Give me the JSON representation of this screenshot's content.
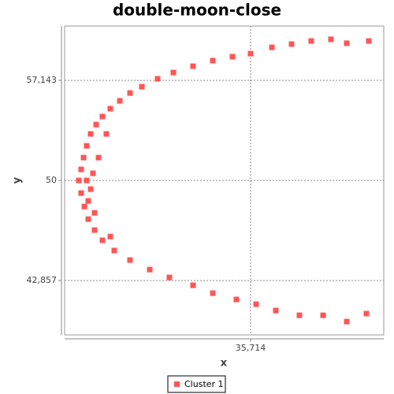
{
  "chart_data": {
    "type": "scatter",
    "title": "double-moon-close",
    "x_label": "x",
    "y_label": "y",
    "xlim": [
      10,
      54.13
    ],
    "ylim": [
      38.98,
      61.02
    ],
    "xticks": [
      {
        "value": 35.714,
        "label": "35,714"
      }
    ],
    "yticks": [
      {
        "value": 42.857,
        "label": "42,857"
      },
      50,
      {
        "value": 57.143,
        "label": "57,143"
      }
    ],
    "grid": true,
    "legend": "bottom",
    "series": [
      {
        "name": "Cluster 1",
        "color": "#ff5555",
        "x": [
          11.96,
          12.29,
          12.62,
          13.05,
          13.6,
          14.36,
          15.23,
          16.32,
          17.63,
          19.04,
          20.68,
          22.86,
          25.04,
          27.76,
          30.49,
          33.21,
          35.71,
          38.66,
          41.38,
          44.1,
          46.83,
          49.01,
          52.06,
          12.29,
          12.73,
          13.27,
          14.14,
          15.23,
          16.86,
          19.04,
          21.77,
          24.49,
          27.76,
          30.49,
          33.75,
          36.48,
          39.2,
          42.47,
          45.74,
          49.01,
          51.73,
          13.05,
          13.6,
          13.92,
          13.27,
          14.69,
          14.14,
          15.77,
          16.32
        ],
        "y": [
          50,
          50.79,
          51.63,
          52.47,
          53.32,
          53.99,
          54.56,
          55.12,
          55.68,
          56.24,
          56.69,
          57.25,
          57.7,
          58.15,
          58.55,
          58.83,
          59.05,
          59.5,
          59.73,
          59.95,
          60.07,
          59.79,
          59.95,
          49.1,
          48.14,
          47.24,
          46.46,
          45.73,
          45.0,
          44.32,
          43.64,
          43.08,
          42.52,
          41.96,
          41.51,
          41.17,
          40.72,
          40.38,
          40.38,
          39.93,
          40.5,
          50,
          49.38,
          50.51,
          48.54,
          51.63,
          47.69,
          53.32,
          46.0
        ]
      }
    ]
  }
}
